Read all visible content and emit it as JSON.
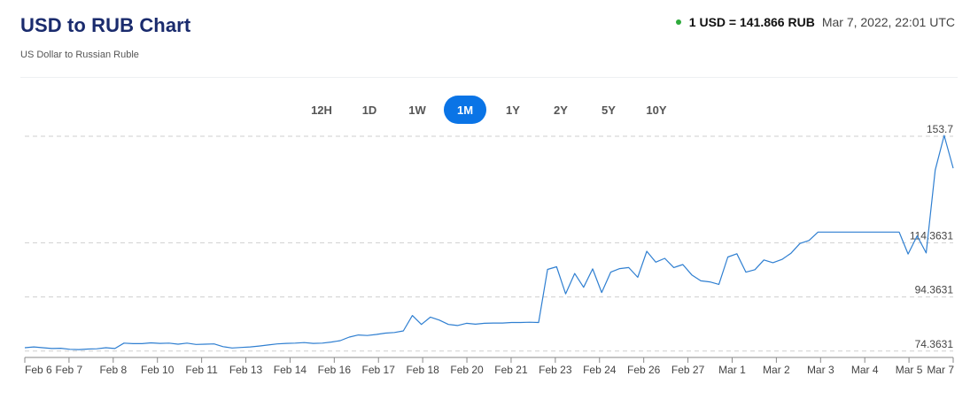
{
  "header": {
    "title": "USD to RUB Chart",
    "subtitle": "US Dollar to Russian Ruble",
    "rate": "1 USD = 141.866 RUB",
    "timestamp": "Mar 7, 2022, 22:01 UTC",
    "status_color": "#2eaa3c"
  },
  "ranges": [
    {
      "label": "12H",
      "active": false
    },
    {
      "label": "1D",
      "active": false
    },
    {
      "label": "1W",
      "active": false
    },
    {
      "label": "1M",
      "active": true
    },
    {
      "label": "1Y",
      "active": false
    },
    {
      "label": "2Y",
      "active": false
    },
    {
      "label": "5Y",
      "active": false
    },
    {
      "label": "10Y",
      "active": false
    }
  ],
  "chart_data": {
    "type": "line",
    "title": "USD to RUB Chart",
    "xlabel": "",
    "ylabel": "",
    "line_color": "#2f7fd1",
    "grid": "horizontal dashed",
    "ylim": [
      72,
      155
    ],
    "y_ticks": [
      {
        "value": 153.7,
        "label": "153.7"
      },
      {
        "value": 114.3631,
        "label": "114.3631"
      },
      {
        "value": 94.3631,
        "label": "94.3631"
      },
      {
        "value": 74.3631,
        "label": "74.3631"
      }
    ],
    "x_ticks": [
      "Feb 6",
      "Feb 7",
      "Feb 8",
      "Feb 10",
      "Feb 11",
      "Feb 13",
      "Feb 14",
      "Feb 16",
      "Feb 17",
      "Feb 18",
      "Feb 20",
      "Feb 21",
      "Feb 23",
      "Feb 24",
      "Feb 26",
      "Feb 27",
      "Mar 1",
      "Mar 2",
      "Mar 3",
      "Mar 4",
      "Mar 5",
      "Mar 7"
    ],
    "series": [
      {
        "x": [
          0,
          1,
          2,
          3,
          4,
          5,
          6,
          7,
          8,
          9,
          10,
          11,
          12,
          13,
          14,
          15,
          16,
          17,
          18,
          19,
          20,
          21,
          22,
          23,
          24,
          25,
          26,
          27,
          28,
          29,
          30,
          31,
          32,
          33,
          34,
          35,
          36,
          37,
          38,
          39,
          40,
          41,
          42,
          43,
          44,
          45,
          46,
          47,
          48,
          49,
          50,
          51,
          52,
          53,
          54,
          55,
          56,
          57,
          58,
          59,
          60,
          61,
          62,
          63,
          64,
          65,
          66,
          67,
          68,
          69,
          70,
          71,
          72,
          73,
          74,
          75,
          76,
          77,
          78,
          79,
          80,
          81,
          82,
          83,
          84,
          85,
          86,
          87,
          88,
          89,
          90,
          91,
          92,
          93,
          94,
          95,
          96,
          97,
          98,
          99,
          100,
          101,
          102,
          103
        ],
        "values": [
          75.6,
          75.9,
          75.6,
          75.3,
          75.4,
          75.0,
          74.9,
          75.1,
          75.2,
          75.6,
          75.3,
          77.3,
          77.1,
          77.1,
          77.4,
          77.2,
          77.3,
          76.9,
          77.3,
          76.8,
          76.9,
          77.0,
          76.0,
          75.5,
          75.7,
          75.9,
          76.2,
          76.6,
          77.0,
          77.2,
          77.3,
          77.5,
          77.2,
          77.3,
          77.7,
          78.2,
          79.5,
          80.3,
          80.1,
          80.5,
          81.0,
          81.2,
          81.8,
          87.5,
          84.2,
          86.9,
          85.8,
          84.2,
          83.8,
          84.6,
          84.3,
          84.6,
          84.7,
          84.7,
          84.9,
          84.9,
          85.0,
          84.9,
          104.5,
          105.5,
          95.5,
          103.0,
          97.9,
          104.7,
          96.0,
          103.5,
          104.8,
          105.2,
          101.6,
          111.2,
          107.2,
          108.6,
          105.2,
          106.3,
          102.5,
          100.3,
          99.9,
          99.0,
          109.1,
          110.3,
          103.5,
          104.4,
          108.0,
          107.0,
          108.2,
          110.5,
          114.1,
          115.2,
          118.3,
          118.3,
          118.3,
          118.3,
          118.3,
          118.3,
          118.3,
          118.3,
          118.3,
          118.3,
          110.2,
          116.9,
          110.6,
          141.2,
          154.0,
          141.9
        ]
      }
    ]
  }
}
